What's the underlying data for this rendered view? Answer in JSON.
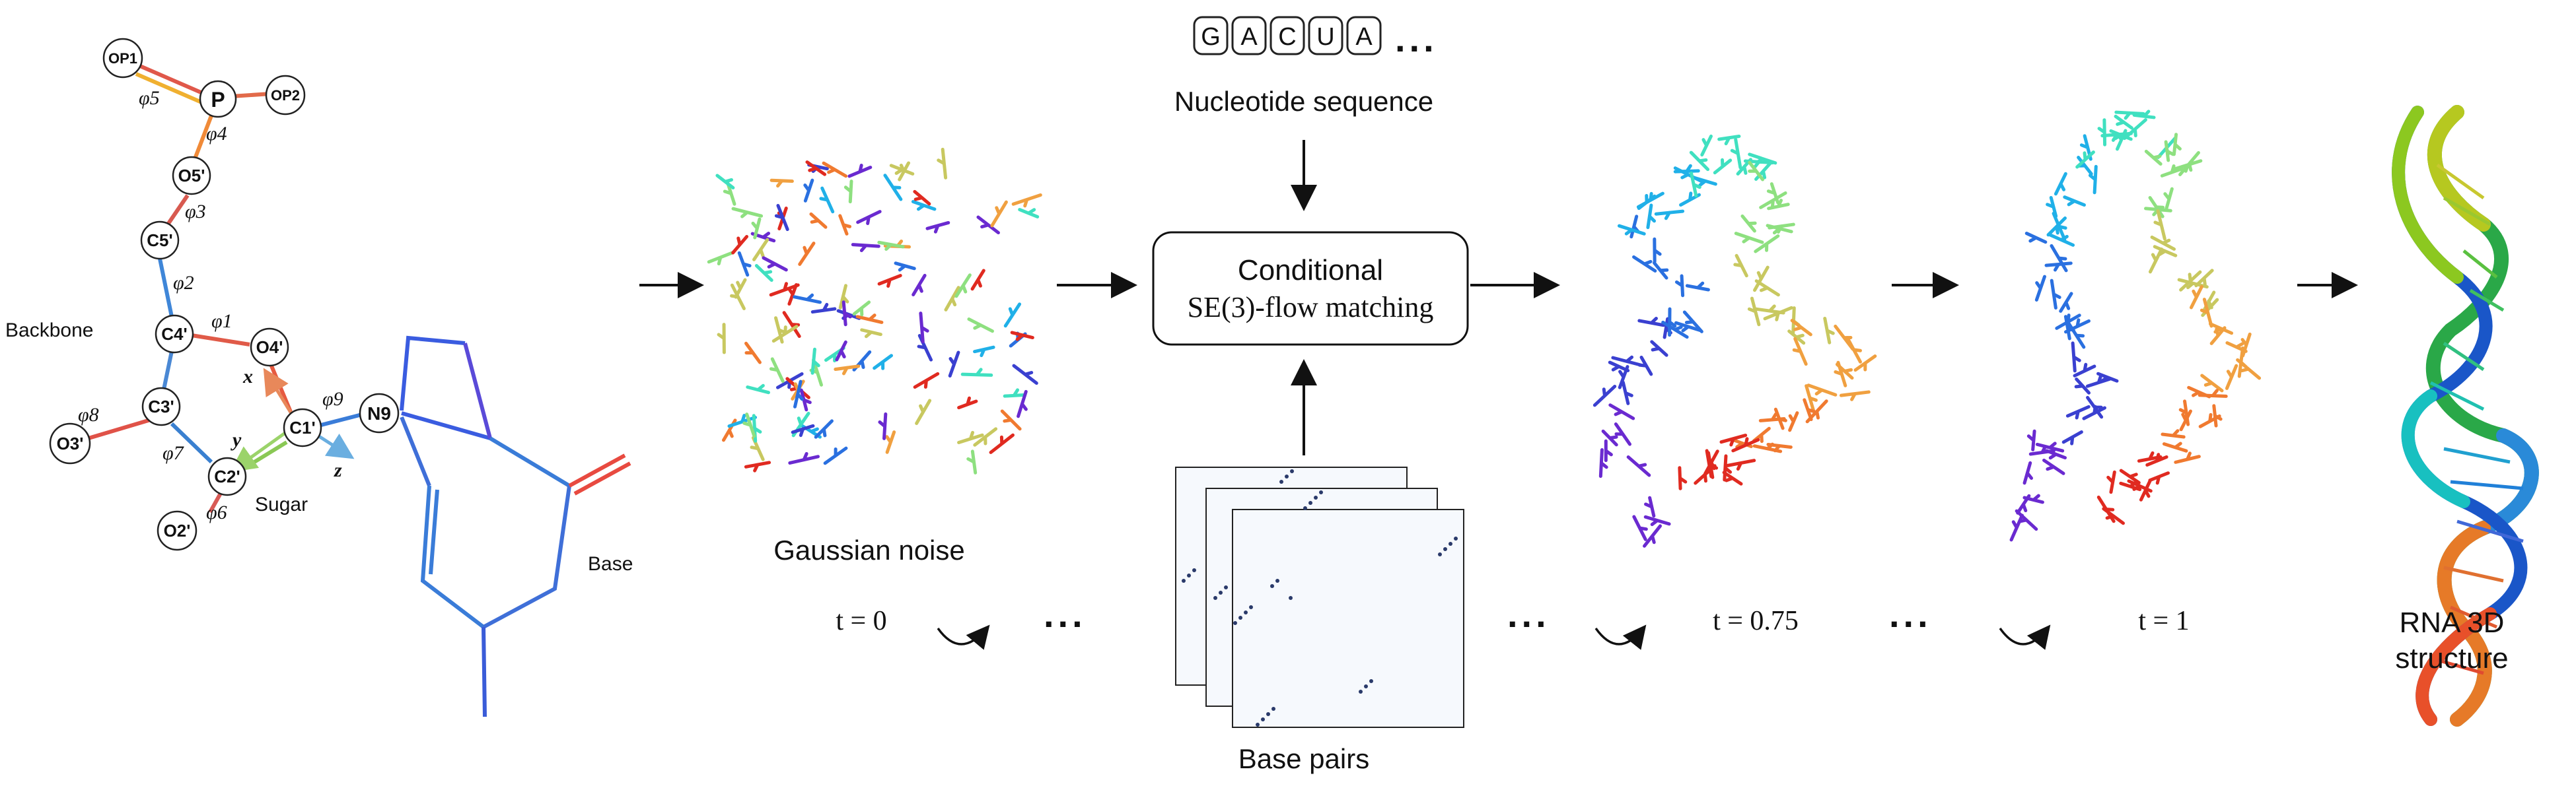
{
  "molecule": {
    "atoms": [
      {
        "id": "op1",
        "label": "OP1"
      },
      {
        "id": "p",
        "label": "P"
      },
      {
        "id": "op2",
        "label": "OP2"
      },
      {
        "id": "o5",
        "label": "O5'"
      },
      {
        "id": "c5",
        "label": "C5'"
      },
      {
        "id": "c4",
        "label": "C4'"
      },
      {
        "id": "o4",
        "label": "O4'"
      },
      {
        "id": "c3",
        "label": "C3'"
      },
      {
        "id": "c1",
        "label": "C1'"
      },
      {
        "id": "n9",
        "label": "N9"
      },
      {
        "id": "o3",
        "label": "O3'"
      },
      {
        "id": "c2",
        "label": "C2'"
      },
      {
        "id": "o2",
        "label": "O2'"
      }
    ],
    "torsions": [
      "φ5",
      "φ4",
      "φ3",
      "φ2",
      "φ1",
      "φ9",
      "φ8",
      "φ7",
      "φ6"
    ],
    "axes": [
      "x",
      "y",
      "z"
    ],
    "backbone_label": "Backbone",
    "sugar_label": "Sugar",
    "base_label": "Base"
  },
  "sequence": {
    "letters": [
      "G",
      "A",
      "C",
      "U",
      "A"
    ],
    "ellipsis": "...",
    "label": "Nucleotide sequence"
  },
  "flow_box": {
    "line1": "Conditional",
    "line2": "SE(3)-flow matching"
  },
  "gaussian_label": "Gaussian noise",
  "timesteps": [
    "t = 0",
    "t = 0.75",
    "t = 1"
  ],
  "ellipsis": "...",
  "base_pairs_label": "Base pairs",
  "output_label_line1": "RNA 3D",
  "output_label_line2": "structure"
}
